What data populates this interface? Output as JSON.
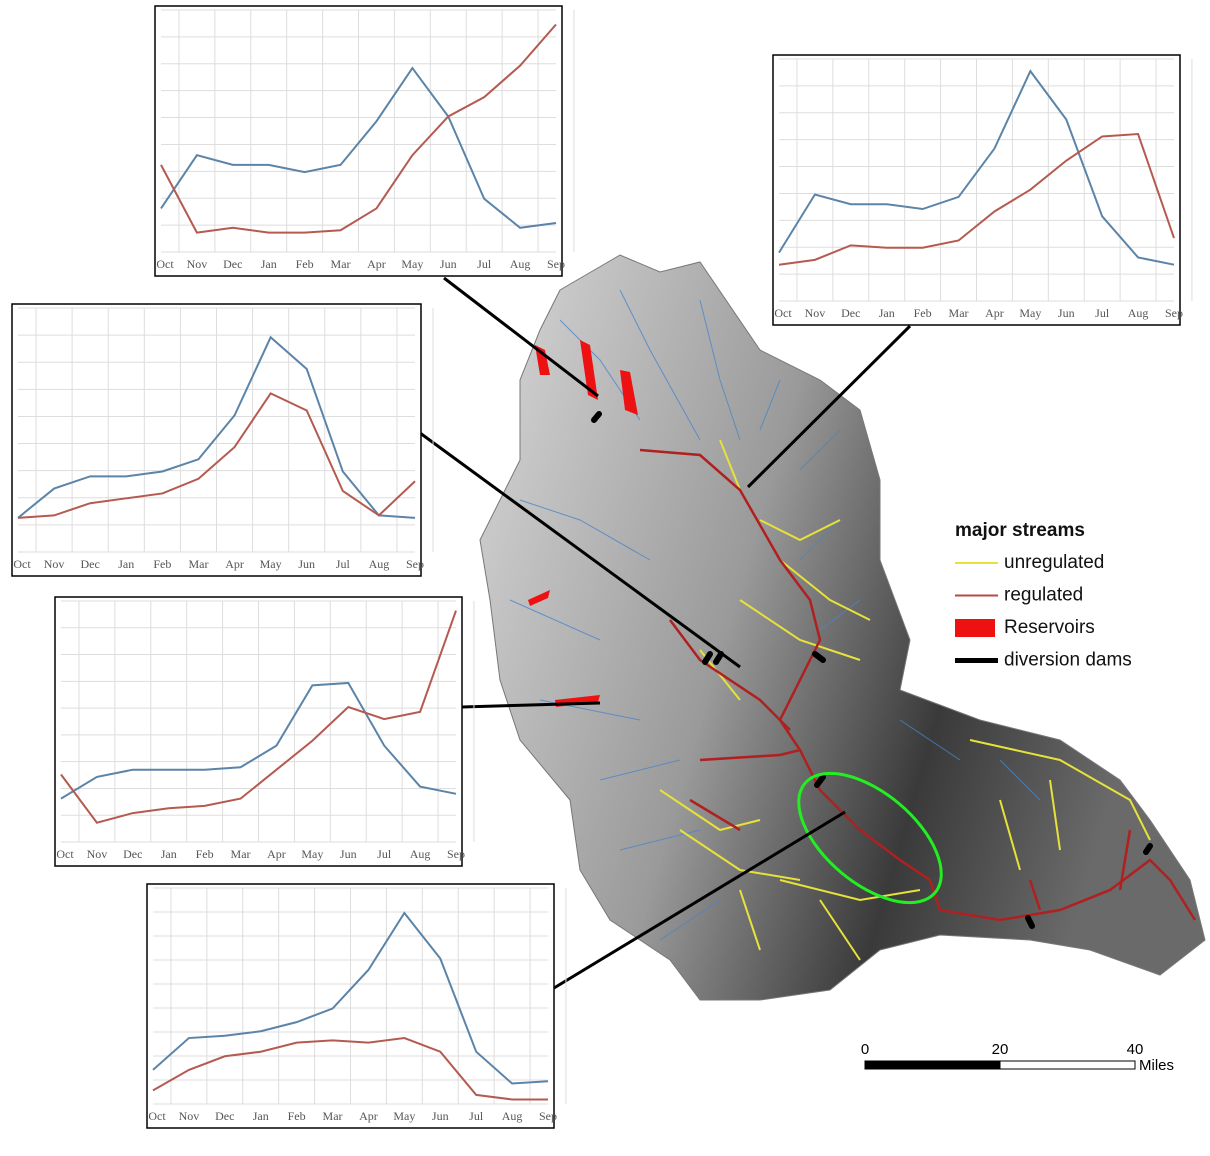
{
  "chart_data": [
    {
      "type": "line",
      "categories": [
        "Oct",
        "Nov",
        "Dec",
        "Jan",
        "Feb",
        "Mar",
        "Apr",
        "May",
        "Jun",
        "Jul",
        "Aug",
        "Sep"
      ],
      "ylim": [
        0,
        10
      ],
      "series": [
        {
          "color": "#5b84a8",
          "values": [
            1.8,
            4.0,
            3.6,
            3.6,
            3.3,
            3.6,
            5.4,
            7.6,
            5.6,
            2.2,
            1.0,
            1.2
          ]
        },
        {
          "color": "#b55a50",
          "values": [
            3.6,
            0.8,
            1.0,
            0.8,
            0.8,
            0.9,
            1.8,
            4.0,
            5.6,
            6.4,
            7.7,
            9.4
          ]
        }
      ]
    },
    {
      "type": "line",
      "categories": [
        "Oct",
        "Nov",
        "Dec",
        "Jan",
        "Feb",
        "Mar",
        "Apr",
        "May",
        "Jun",
        "Jul",
        "Aug",
        "Sep"
      ],
      "ylim": [
        0,
        10
      ],
      "series": [
        {
          "color": "#5b84a8",
          "values": [
            2.0,
            4.4,
            4.0,
            4.0,
            3.8,
            4.3,
            6.3,
            9.5,
            7.5,
            3.5,
            1.8,
            1.5
          ]
        },
        {
          "color": "#b55a50",
          "values": [
            1.5,
            1.7,
            2.3,
            2.2,
            2.2,
            2.5,
            3.7,
            4.6,
            5.8,
            6.8,
            6.9,
            2.6
          ]
        }
      ]
    },
    {
      "type": "line",
      "categories": [
        "Oct",
        "Nov",
        "Dec",
        "Jan",
        "Feb",
        "Mar",
        "Apr",
        "May",
        "Jun",
        "Jul",
        "Aug",
        "Sep"
      ],
      "ylim": [
        0,
        10
      ],
      "series": [
        {
          "color": "#5b84a8",
          "values": [
            1.4,
            2.6,
            3.1,
            3.1,
            3.3,
            3.8,
            5.6,
            8.8,
            7.5,
            3.3,
            1.5,
            1.4
          ]
        },
        {
          "color": "#b55a50",
          "values": [
            1.4,
            1.5,
            2.0,
            2.2,
            2.4,
            3.0,
            4.3,
            6.5,
            5.8,
            2.5,
            1.5,
            2.9
          ]
        }
      ]
    },
    {
      "type": "line",
      "categories": [
        "Oct",
        "Nov",
        "Dec",
        "Jan",
        "Feb",
        "Mar",
        "Apr",
        "May",
        "Jun",
        "Jul",
        "Aug",
        "Sep"
      ],
      "ylim": [
        0,
        10
      ],
      "series": [
        {
          "color": "#5b84a8",
          "values": [
            1.8,
            2.7,
            3.0,
            3.0,
            3.0,
            3.1,
            4.0,
            6.5,
            6.6,
            4.0,
            2.3,
            2.0
          ]
        },
        {
          "color": "#b55a50",
          "values": [
            2.8,
            0.8,
            1.2,
            1.4,
            1.5,
            1.8,
            3.0,
            4.2,
            5.6,
            5.1,
            5.4,
            9.6
          ]
        }
      ]
    },
    {
      "type": "line",
      "categories": [
        "Oct",
        "Nov",
        "Dec",
        "Jan",
        "Feb",
        "Mar",
        "Apr",
        "May",
        "Jun",
        "Jul",
        "Aug",
        "Sep"
      ],
      "ylim": [
        0,
        9.5
      ],
      "series": [
        {
          "color": "#5b84a8",
          "values": [
            1.5,
            2.9,
            3.0,
            3.2,
            3.6,
            4.2,
            5.9,
            8.4,
            6.4,
            2.3,
            0.9,
            1.0
          ]
        },
        {
          "color": "#b55a50",
          "values": [
            0.6,
            1.5,
            2.1,
            2.3,
            2.7,
            2.8,
            2.7,
            2.9,
            2.3,
            0.4,
            0.2,
            0.2
          ]
        }
      ]
    }
  ],
  "legend": {
    "title": "major streams",
    "items": [
      {
        "label": "unregulated",
        "color": "#e6e23a"
      },
      {
        "label": "regulated",
        "color": "#b84a40"
      },
      {
        "label": "Reservoirs",
        "color": "#ee1111"
      },
      {
        "label": "diversion dams",
        "color": "#000000"
      }
    ]
  },
  "scale_bar": {
    "ticks": [
      0,
      20,
      40
    ],
    "unit": "Miles"
  }
}
